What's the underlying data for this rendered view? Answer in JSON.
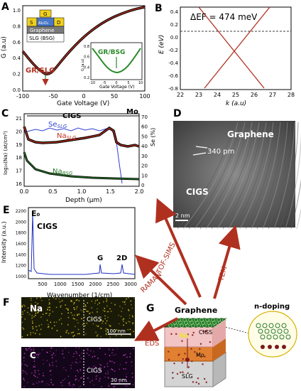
{
  "panels": {
    "A": {
      "letter": "A",
      "ylabel": "G (a.u)",
      "xlabel": "Gate Voltage (V)",
      "xticks": [
        "-100",
        "-50",
        "0",
        "50",
        "100"
      ],
      "yticks": [
        "0.0",
        "0.2",
        "0.4",
        "0.6",
        "0.8",
        "1.0"
      ],
      "device": {
        "g": "G",
        "s": "S",
        "d": "D",
        "oxide": "Al₂O₃",
        "graphene": "Graphene",
        "substrate": "SLG (BSG)"
      },
      "label_slg": "GR/SLG",
      "label_bsg": "GR/BSG",
      "inset": {
        "ylabel": "G (a.u)",
        "xlabel": "Gate Voltage (V)",
        "xticks": [
          "-10",
          "-5",
          "0",
          "5",
          "10"
        ],
        "yticks": [
          "0.2",
          "0.4",
          "0.6",
          "0.8"
        ]
      },
      "colors": {
        "slg": "#b03020",
        "bsg": "#2a8a2a"
      }
    },
    "B": {
      "letter": "B",
      "annotation": "ΔEF = 474 meV",
      "ylabel": "E (eV)",
      "xlabel": "k (a.u)",
      "xticks": [
        "22",
        "23",
        "24",
        "25",
        "26",
        "27",
        "28"
      ],
      "yticks": [
        "-0.8",
        "-0.6",
        "-0.4",
        "-0.2",
        "0.0",
        "0.2",
        "0.4"
      ]
    },
    "C": {
      "letter": "C",
      "xlabel": "Depth (μm)",
      "ylabel_left": "log₁₀(Na) (at/cm³)",
      "ylabel_right": "Se (%)",
      "xticks": [
        "0.0",
        "0.5",
        "1.0",
        "1.5",
        "2.0"
      ],
      "yticks_left": [
        "16",
        "17",
        "18",
        "19",
        "20",
        "21"
      ],
      "yticks_right": [
        "0",
        "10",
        "20",
        "30",
        "40",
        "50",
        "60",
        "70"
      ],
      "region_cigs": "CIGS",
      "region_mo": "Mo",
      "series_se": "Se",
      "series_se_sub": "SLG",
      "series_na_slg": "Na",
      "series_na_slg_sub": "SLG",
      "series_na_bsg": "Na",
      "series_na_bsg_sub": "BSG"
    },
    "D": {
      "letter": "D",
      "label_graphene": "Graphene",
      "label_spacing": "340 pm",
      "label_cigs": "CIGS",
      "scale": "2 nm"
    },
    "E": {
      "letter": "E",
      "ylabel": "Intensity (a.u.)",
      "xlabel": "Wavenumber (1/cm)",
      "xticks": [
        "500",
        "1000",
        "1500",
        "2000",
        "2500",
        "3000"
      ],
      "yticks": [
        "1000",
        "1200",
        "1400",
        "1600",
        "1800",
        "2000",
        "2200"
      ],
      "peak_e0": "E₀",
      "title": "CIGS",
      "peak_g": "G",
      "peak_2d": "2D"
    },
    "F": {
      "letter": "F",
      "map_na": "Na",
      "map_c": "C",
      "cigs": "CIGS",
      "scale1": "100 nm",
      "scale2": "30 nm"
    },
    "G": {
      "letter": "G",
      "graphene": "Graphene",
      "na": "Na",
      "cigs": "CIGS",
      "mo": "Mo",
      "slg": "SLG",
      "ndoping": "n-doping"
    }
  },
  "arrows": {
    "tof_sims": "TOF-SIMS",
    "raman": "RAMAN",
    "eds": "EDS",
    "tem": "TEM"
  }
}
